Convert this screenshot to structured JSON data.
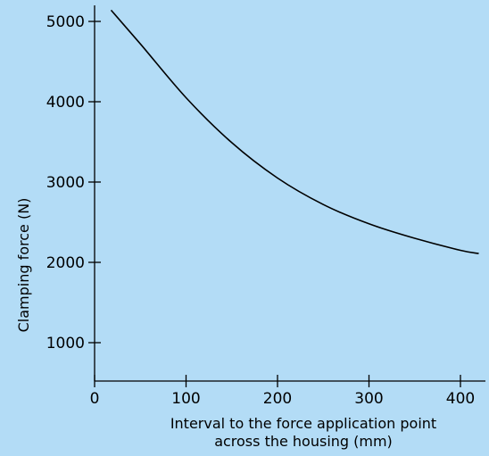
{
  "colors": {
    "background": "#b3dcf6",
    "axis": "#000000",
    "curve": "#000000"
  },
  "chart_data": {
    "type": "line",
    "title": "",
    "xlabel_line1": "Interval to the force application point",
    "xlabel_line2": "across the housing (mm)",
    "ylabel": "Clamping force (N)",
    "xlim": [
      0,
      430
    ],
    "ylim": [
      0,
      5200
    ],
    "xticks": [
      0,
      100,
      200,
      300,
      400
    ],
    "xtick_labels": [
      "0",
      "100",
      "200",
      "300",
      "400"
    ],
    "yticks": [
      1000,
      2000,
      3000,
      4000,
      5000
    ],
    "ytick_labels": [
      "1000",
      "2000",
      "3000",
      "4000",
      "5000"
    ],
    "grid": false,
    "series": [
      {
        "x": [
          18,
          50,
          100,
          150,
          200,
          250,
          300,
          350,
          400,
          420
        ],
        "y": [
          5140,
          4720,
          4050,
          3490,
          3050,
          2720,
          2480,
          2300,
          2150,
          2110
        ]
      }
    ]
  }
}
